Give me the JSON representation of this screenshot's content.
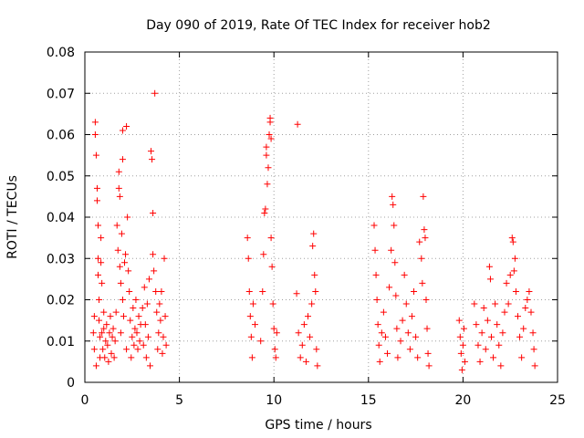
{
  "chart_data": {
    "type": "scatter",
    "title": "Day 090 of 2019, Rate Of TEC Index for receiver hob2",
    "xlabel": "GPS time / hours",
    "ylabel": "ROTI / TECUs",
    "xlim": [
      0,
      25
    ],
    "ylim": [
      0,
      0.08
    ],
    "xticks": [
      0,
      5,
      10,
      15,
      20,
      25
    ],
    "yticks": [
      0,
      0.01,
      0.02,
      0.03,
      0.04,
      0.05,
      0.06,
      0.07,
      0.08
    ],
    "xtick_labels": [
      "0",
      "5",
      "10",
      "15",
      "20",
      "25"
    ],
    "ytick_labels": [
      "0",
      "0.01",
      "0.02",
      "0.03",
      "0.04",
      "0.05",
      "0.06",
      "0.07",
      "0.08"
    ],
    "grid": true,
    "marker": "plus",
    "color": "#ff0000",
    "series": [
      {
        "points": [
          [
            0.45,
            0.012
          ],
          [
            0.5,
            0.008
          ],
          [
            0.5,
            0.016
          ],
          [
            0.55,
            0.063
          ],
          [
            0.55,
            0.06
          ],
          [
            0.6,
            0.055
          ],
          [
            0.6,
            0.004
          ],
          [
            0.65,
            0.047
          ],
          [
            0.65,
            0.044
          ],
          [
            0.7,
            0.038
          ],
          [
            0.7,
            0.03
          ],
          [
            0.7,
            0.026
          ],
          [
            0.75,
            0.02
          ],
          [
            0.75,
            0.015
          ],
          [
            0.8,
            0.011
          ],
          [
            0.8,
            0.006
          ],
          [
            0.85,
            0.035
          ],
          [
            0.85,
            0.029
          ],
          [
            0.9,
            0.024
          ],
          [
            0.9,
            0.012
          ],
          [
            0.95,
            0.008
          ],
          [
            1.0,
            0.013
          ],
          [
            1.0,
            0.017
          ],
          [
            1.05,
            0.006
          ],
          [
            1.1,
            0.01
          ],
          [
            1.15,
            0.014
          ],
          [
            1.2,
            0.009
          ],
          [
            1.25,
            0.005
          ],
          [
            1.3,
            0.012
          ],
          [
            1.35,
            0.016
          ],
          [
            1.4,
            0.007
          ],
          [
            1.45,
            0.011
          ],
          [
            1.5,
            0.013
          ],
          [
            1.55,
            0.006
          ],
          [
            1.6,
            0.01
          ],
          [
            1.65,
            0.017
          ],
          [
            1.7,
            0.038
          ],
          [
            1.75,
            0.032
          ],
          [
            1.8,
            0.051
          ],
          [
            1.8,
            0.047
          ],
          [
            1.85,
            0.045
          ],
          [
            1.85,
            0.028
          ],
          [
            1.9,
            0.024
          ],
          [
            1.9,
            0.012
          ],
          [
            1.95,
            0.036
          ],
          [
            2.0,
            0.02
          ],
          [
            2.0,
            0.054
          ],
          [
            2.0,
            0.061
          ],
          [
            2.05,
            0.016
          ],
          [
            2.1,
            0.029
          ],
          [
            2.15,
            0.031
          ],
          [
            2.2,
            0.008
          ],
          [
            2.2,
            0.062
          ],
          [
            2.25,
            0.04
          ],
          [
            2.3,
            0.027
          ],
          [
            2.35,
            0.022
          ],
          [
            2.4,
            0.015
          ],
          [
            2.45,
            0.006
          ],
          [
            2.5,
            0.011
          ],
          [
            2.55,
            0.018
          ],
          [
            2.6,
            0.009
          ],
          [
            2.65,
            0.013
          ],
          [
            2.7,
            0.02
          ],
          [
            2.75,
            0.012
          ],
          [
            2.8,
            0.008
          ],
          [
            2.85,
            0.016
          ],
          [
            2.9,
            0.01
          ],
          [
            2.95,
            0.014
          ],
          [
            3.05,
            0.018
          ],
          [
            3.1,
            0.009
          ],
          [
            3.15,
            0.023
          ],
          [
            3.2,
            0.014
          ],
          [
            3.25,
            0.006
          ],
          [
            3.3,
            0.019
          ],
          [
            3.35,
            0.011
          ],
          [
            3.4,
            0.025
          ],
          [
            3.45,
            0.004
          ],
          [
            3.5,
            0.056
          ],
          [
            3.55,
            0.054
          ],
          [
            3.6,
            0.041
          ],
          [
            3.6,
            0.031
          ],
          [
            3.65,
            0.027
          ],
          [
            3.7,
            0.07
          ],
          [
            3.75,
            0.022
          ],
          [
            3.8,
            0.017
          ],
          [
            3.85,
            0.008
          ],
          [
            3.9,
            0.012
          ],
          [
            3.95,
            0.019
          ],
          [
            4.0,
            0.015
          ],
          [
            4.05,
            0.022
          ],
          [
            4.1,
            0.007
          ],
          [
            4.15,
            0.011
          ],
          [
            4.2,
            0.03
          ],
          [
            4.25,
            0.016
          ],
          [
            4.3,
            0.009
          ],
          [
            8.6,
            0.035
          ],
          [
            8.65,
            0.03
          ],
          [
            8.7,
            0.022
          ],
          [
            8.75,
            0.016
          ],
          [
            8.8,
            0.011
          ],
          [
            8.85,
            0.006
          ],
          [
            8.9,
            0.019
          ],
          [
            9.0,
            0.014
          ],
          [
            9.3,
            0.01
          ],
          [
            9.4,
            0.022
          ],
          [
            9.45,
            0.031
          ],
          [
            9.5,
            0.041
          ],
          [
            9.55,
            0.042
          ],
          [
            9.6,
            0.057
          ],
          [
            9.6,
            0.055
          ],
          [
            9.65,
            0.048
          ],
          [
            9.7,
            0.052
          ],
          [
            9.75,
            0.06
          ],
          [
            9.8,
            0.064
          ],
          [
            9.8,
            0.063
          ],
          [
            9.85,
            0.059
          ],
          [
            9.85,
            0.035
          ],
          [
            9.9,
            0.028
          ],
          [
            9.95,
            0.019
          ],
          [
            10.0,
            0.013
          ],
          [
            10.05,
            0.008
          ],
          [
            10.1,
            0.006
          ],
          [
            10.15,
            0.012
          ],
          [
            11.2,
            0.0215
          ],
          [
            11.25,
            0.0625
          ],
          [
            11.3,
            0.012
          ],
          [
            11.4,
            0.006
          ],
          [
            11.5,
            0.009
          ],
          [
            11.6,
            0.014
          ],
          [
            11.7,
            0.005
          ],
          [
            11.8,
            0.016
          ],
          [
            11.9,
            0.011
          ],
          [
            12.0,
            0.019
          ],
          [
            12.05,
            0.033
          ],
          [
            12.1,
            0.036
          ],
          [
            12.15,
            0.026
          ],
          [
            12.2,
            0.022
          ],
          [
            12.25,
            0.008
          ],
          [
            12.3,
            0.004
          ],
          [
            15.3,
            0.038
          ],
          [
            15.35,
            0.032
          ],
          [
            15.4,
            0.026
          ],
          [
            15.45,
            0.02
          ],
          [
            15.5,
            0.014
          ],
          [
            15.55,
            0.009
          ],
          [
            15.6,
            0.005
          ],
          [
            15.7,
            0.012
          ],
          [
            15.8,
            0.017
          ],
          [
            15.9,
            0.011
          ],
          [
            16.0,
            0.007
          ],
          [
            16.1,
            0.023
          ],
          [
            16.2,
            0.032
          ],
          [
            16.25,
            0.045
          ],
          [
            16.3,
            0.043
          ],
          [
            16.35,
            0.038
          ],
          [
            16.4,
            0.029
          ],
          [
            16.45,
            0.021
          ],
          [
            16.5,
            0.013
          ],
          [
            16.55,
            0.006
          ],
          [
            16.7,
            0.01
          ],
          [
            16.8,
            0.015
          ],
          [
            16.9,
            0.026
          ],
          [
            17.0,
            0.019
          ],
          [
            17.1,
            0.012
          ],
          [
            17.2,
            0.008
          ],
          [
            17.3,
            0.016
          ],
          [
            17.4,
            0.022
          ],
          [
            17.5,
            0.011
          ],
          [
            17.6,
            0.006
          ],
          [
            17.7,
            0.034
          ],
          [
            17.8,
            0.03
          ],
          [
            17.85,
            0.024
          ],
          [
            17.9,
            0.045
          ],
          [
            17.95,
            0.037
          ],
          [
            18.0,
            0.035
          ],
          [
            18.05,
            0.02
          ],
          [
            18.1,
            0.013
          ],
          [
            18.15,
            0.007
          ],
          [
            18.2,
            0.004
          ],
          [
            19.8,
            0.015
          ],
          [
            19.85,
            0.011
          ],
          [
            19.9,
            0.007
          ],
          [
            19.95,
            0.003
          ],
          [
            20.0,
            0.009
          ],
          [
            20.05,
            0.013
          ],
          [
            20.1,
            0.005
          ],
          [
            20.6,
            0.019
          ],
          [
            20.7,
            0.014
          ],
          [
            20.8,
            0.009
          ],
          [
            20.9,
            0.005
          ],
          [
            21.0,
            0.012
          ],
          [
            21.1,
            0.018
          ],
          [
            21.2,
            0.008
          ],
          [
            21.3,
            0.015
          ],
          [
            21.4,
            0.028
          ],
          [
            21.45,
            0.025
          ],
          [
            21.5,
            0.011
          ],
          [
            21.6,
            0.006
          ],
          [
            21.7,
            0.019
          ],
          [
            21.8,
            0.014
          ],
          [
            21.9,
            0.009
          ],
          [
            22.0,
            0.004
          ],
          [
            22.1,
            0.012
          ],
          [
            22.2,
            0.017
          ],
          [
            22.3,
            0.024
          ],
          [
            22.4,
            0.019
          ],
          [
            22.5,
            0.026
          ],
          [
            22.6,
            0.035
          ],
          [
            22.65,
            0.034
          ],
          [
            22.7,
            0.027
          ],
          [
            22.75,
            0.03
          ],
          [
            22.8,
            0.022
          ],
          [
            22.9,
            0.016
          ],
          [
            23.0,
            0.011
          ],
          [
            23.1,
            0.006
          ],
          [
            23.2,
            0.013
          ],
          [
            23.3,
            0.018
          ],
          [
            23.4,
            0.02
          ],
          [
            23.5,
            0.022
          ],
          [
            23.6,
            0.017
          ],
          [
            23.7,
            0.012
          ],
          [
            23.75,
            0.008
          ],
          [
            23.8,
            0.004
          ]
        ]
      }
    ]
  }
}
